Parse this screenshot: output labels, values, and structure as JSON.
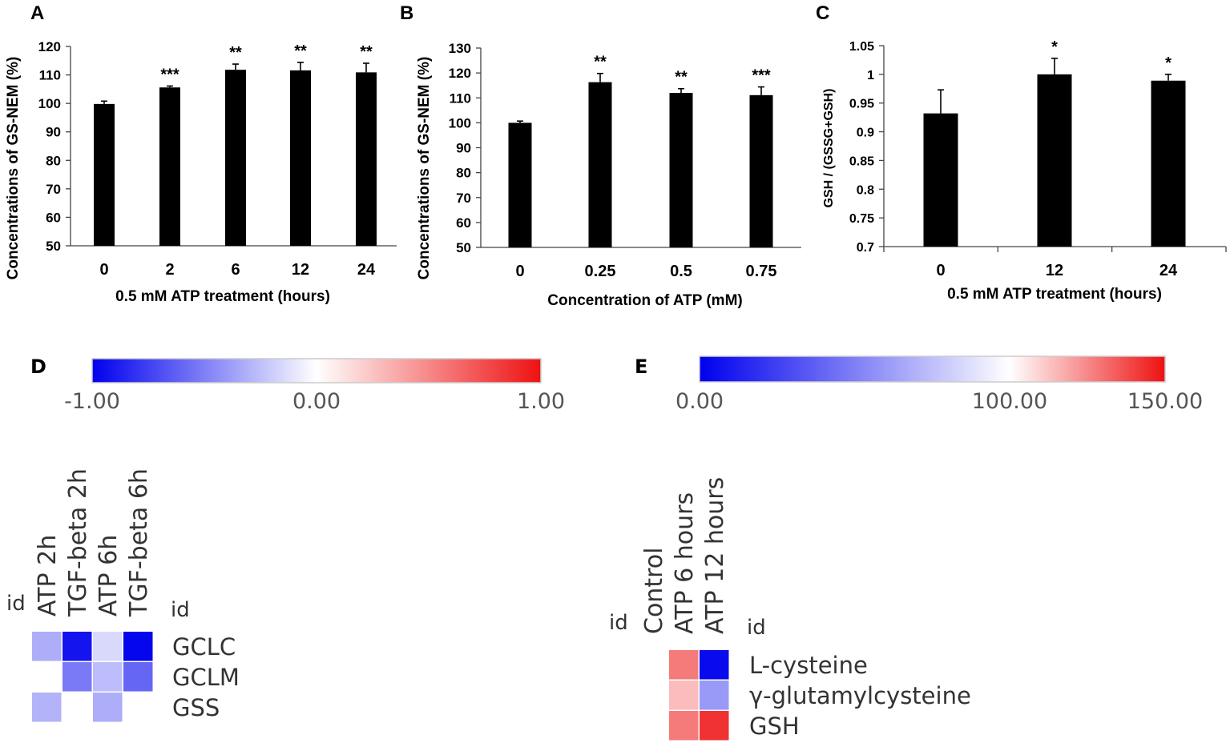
{
  "charts": [
    {
      "panel": "A",
      "type": "bar",
      "categories": [
        "0",
        "2",
        "6",
        "12",
        "24"
      ],
      "values": [
        99.8,
        105.6,
        111.8,
        111.6,
        110.9
      ],
      "errors": [
        1.0,
        0.5,
        2.0,
        2.8,
        3.2
      ],
      "significance": [
        "",
        "***",
        "**",
        "**",
        "**"
      ],
      "title": "",
      "xlabel": "0.5 mM ATP treatment (hours)",
      "ylabel": "Concentrations of GS-NEM (%)",
      "ylim": [
        50,
        120
      ],
      "yticks": [
        "50",
        "60",
        "70",
        "80",
        "90",
        "100",
        "110",
        "120"
      ]
    },
    {
      "panel": "B",
      "type": "bar",
      "categories": [
        "0",
        "0.25",
        "0.5",
        "0.75"
      ],
      "values": [
        100,
        116.3,
        112,
        111.1
      ],
      "errors": [
        0.7,
        3.5,
        1.7,
        3.3
      ],
      "significance": [
        "",
        "**",
        "**",
        "***"
      ],
      "title": "",
      "xlabel": "Concentration of ATP (mM)",
      "ylabel": "Concentrations of GS-NEM (%)",
      "ylim": [
        50,
        130
      ],
      "yticks": [
        "50",
        "60",
        "70",
        "80",
        "90",
        "100",
        "110",
        "120",
        "130"
      ]
    },
    {
      "panel": "C",
      "type": "bar",
      "categories": [
        "0",
        "12",
        "24"
      ],
      "values": [
        0.932,
        1.0,
        0.989
      ],
      "errors": [
        0.041,
        0.028,
        0.011
      ],
      "significance": [
        "",
        "*",
        "*"
      ],
      "title": "",
      "xlabel": "0.5 mM ATP treatment (hours)",
      "ylabel": "GSH / (GSSG+GSH)",
      "ylim": [
        0.7,
        1.05
      ],
      "yticks": [
        "0.7",
        "0.75",
        "0.8",
        "0.85",
        "0.9",
        "0.95",
        "1",
        "1.05"
      ]
    },
    {
      "panel": "D",
      "type": "heatmap",
      "colorbar_ticks": [
        "-1.00",
        "0.00",
        "1.00"
      ],
      "colorbar_range": [
        -1,
        1
      ],
      "id_label": "id",
      "columns": [
        "ATP 2h",
        "TGF-beta 2h",
        "ATP 6h",
        "TGF-beta 6h"
      ],
      "rows": [
        "GCLC",
        "GCLM",
        "GSS"
      ],
      "values": [
        [
          -0.32,
          -0.92,
          -0.15,
          -0.98
        ],
        [
          null,
          -0.52,
          -0.26,
          -0.6
        ],
        [
          -0.3,
          null,
          -0.32,
          null
        ]
      ]
    },
    {
      "panel": "E",
      "type": "heatmap",
      "colorbar_ticks": [
        "0.00",
        "100.00",
        "150.00"
      ],
      "colorbar_range": [
        0,
        150
      ],
      "id_label": "id",
      "columns": [
        "Control",
        "ATP 6 hours",
        "ATP 12 hours"
      ],
      "rows": [
        "L-cysteine",
        "γ-glutamylcysteine",
        "GSH"
      ],
      "values": [
        [
          null,
          128,
          4
        ],
        [
          null,
          114,
          60
        ],
        [
          null,
          128,
          143
        ]
      ]
    }
  ],
  "colors": {
    "bar": "#000000",
    "neg": "#0000ee",
    "mid": "#ffffff",
    "pos": "#ee1111"
  }
}
